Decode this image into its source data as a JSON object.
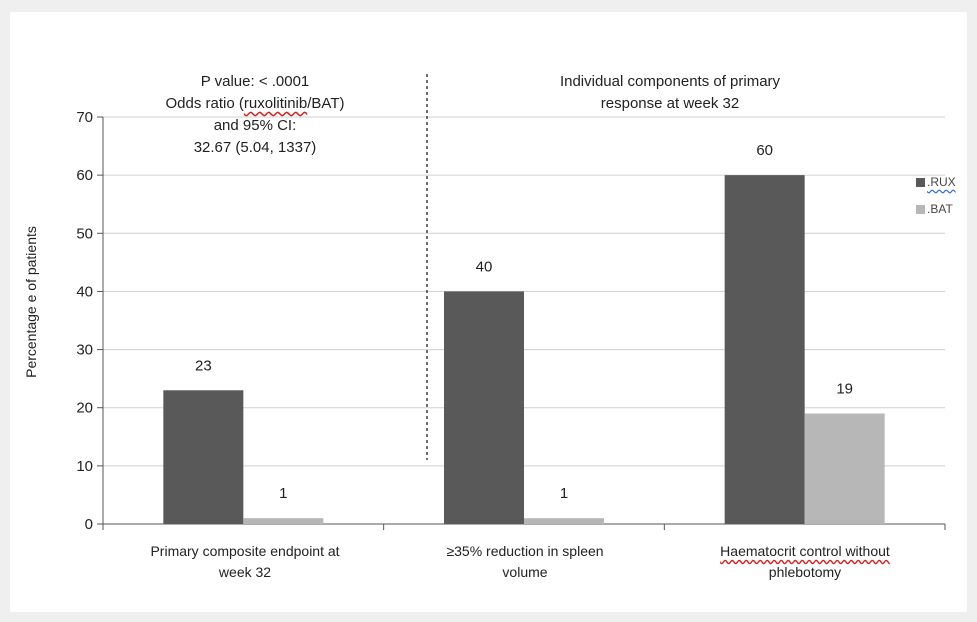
{
  "chart_data": {
    "type": "bar",
    "categories": [
      "Primary composite endpoint at week 32",
      "≥35% reduction in spleen volume",
      "Haematocrit control without phlebotomy"
    ],
    "category_lines": [
      [
        "Primary composite endpoint at",
        "week 32"
      ],
      [
        "≥35% reduction in spleen",
        "volume"
      ],
      [
        "Haematocrit control without",
        "phlebotomy"
      ]
    ],
    "series": [
      {
        "name": ".RUX",
        "values": [
          23,
          40,
          60
        ],
        "color": "#595959"
      },
      {
        "name": ".BAT",
        "values": [
          1,
          1,
          19
        ],
        "color": "#b7b7b7"
      }
    ],
    "ylabel": "Percentage e of patients",
    "ylim": [
      0,
      70
    ],
    "yticks": [
      0,
      10,
      20,
      30,
      40,
      50,
      60,
      70
    ],
    "grid": true,
    "legend": "right",
    "annotations": {
      "left_lines": [
        "P value: < .0001",
        [
          "Odds ratio (",
          "ruxolitinib",
          "/BAT)"
        ],
        "and 95% CI:",
        "32.67 (5.04, 1337)"
      ],
      "right_lines": [
        "Individual components of primary",
        "response at week 32"
      ]
    }
  }
}
